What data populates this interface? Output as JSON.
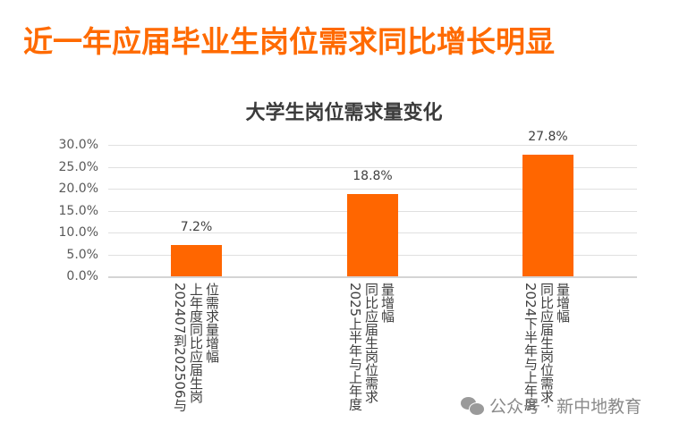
{
  "page": {
    "title": "近一年应届毕业生岗位需求同比增长明显"
  },
  "watermark": {
    "icon": "wechat-icon",
    "text": "公众号 · 新中地教育"
  },
  "colors": {
    "title": "#ff6a00",
    "bar": "#ff6600"
  },
  "chart_data": {
    "type": "bar",
    "title": "大学生岗位需求量变化",
    "categories": [
      "202407到202506与上年度同比应届生岗位需求量增幅",
      "2025上半年与上年度同比应届生岗位需求量增幅",
      "2024下半年与上年度同比应届生岗位需求量增幅"
    ],
    "values": [
      7.2,
      18.8,
      27.8
    ],
    "value_labels": [
      "7.2%",
      "18.8%",
      "27.8%"
    ],
    "xlabel": "",
    "ylabel": "",
    "ylim": [
      0,
      30
    ],
    "yticks": [
      "30.0%",
      "25.0%",
      "20.0%",
      "15.0%",
      "10.0%",
      "5.0%",
      "0.0%"
    ],
    "grid": true,
    "legend": "none"
  },
  "xlabels_display": [
    "202407到202506与\n上年度同比应届生岗\n位需求量增幅",
    "2025上半年与上年度\n同比应届生岗位需求\n量增幅",
    "2024下半年与上年度\n同比应届生岗位需求\n量增幅"
  ]
}
